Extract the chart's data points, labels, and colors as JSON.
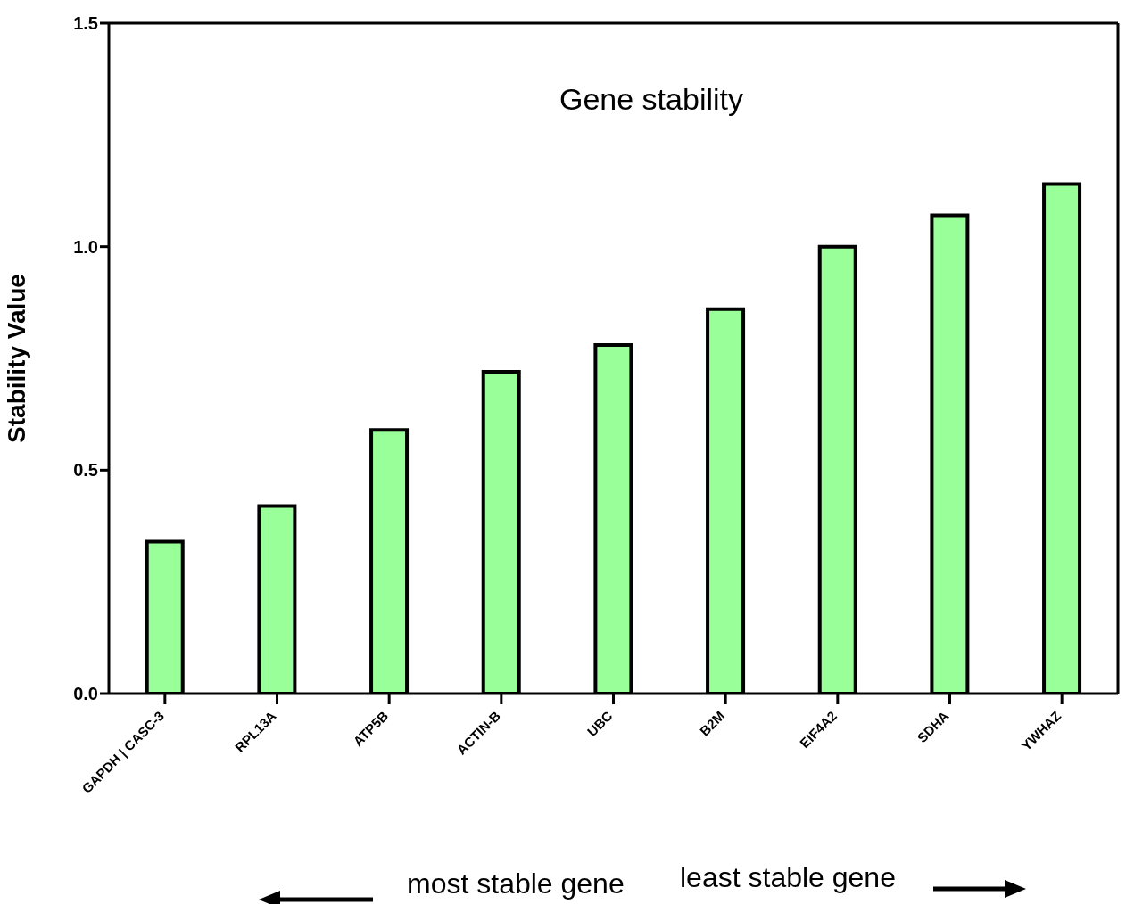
{
  "chart_data": {
    "type": "bar",
    "title": "Gene stability",
    "ylabel": "Stability Value",
    "categories": [
      "GAPDH | CASC-3",
      "RPL13A",
      "ATP5B",
      "ACTIN-B",
      "UBC",
      "B2M",
      "EIF4A2",
      "SDHA",
      "YWHAZ"
    ],
    "values": [
      0.34,
      0.42,
      0.59,
      0.72,
      0.78,
      0.86,
      1.0,
      1.07,
      1.14
    ],
    "color": "#99ff99",
    "ylim": [
      0,
      1.5
    ],
    "yticks": [
      {
        "value": 0,
        "label": "0.0"
      },
      {
        "value": 0.5,
        "label": "0.5"
      },
      {
        "value": 1,
        "label": "1.0"
      },
      {
        "value": 1.5,
        "label": "1.5"
      }
    ],
    "grid": false,
    "annotations": [
      "most stable gene",
      "least stable gene"
    ]
  }
}
